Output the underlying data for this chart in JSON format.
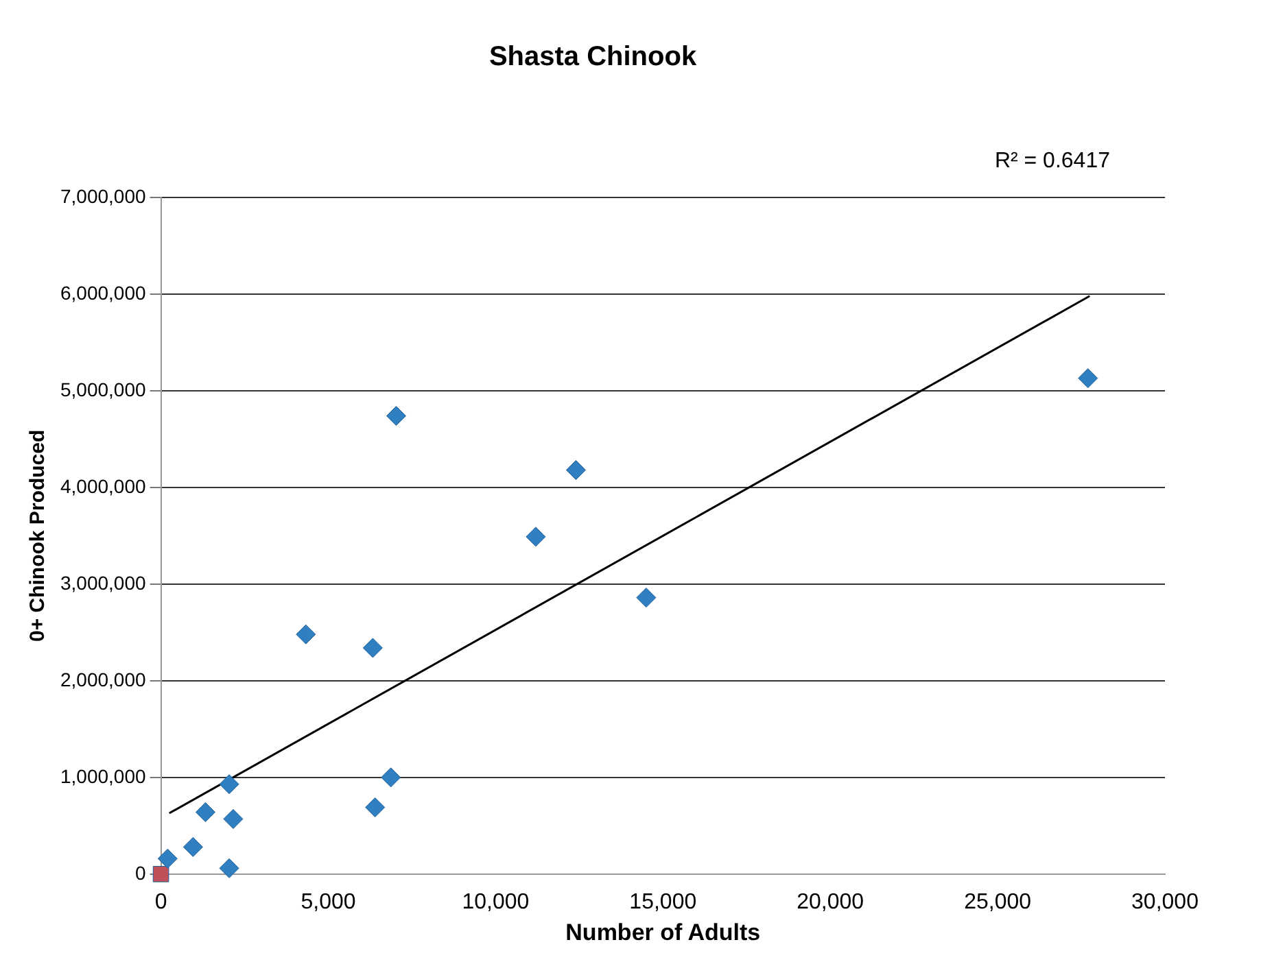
{
  "chart_data": {
    "type": "scatter",
    "title": "Shasta Chinook",
    "xlabel": "Number of Adults",
    "ylabel": "0+ Chinook Produced",
    "annotations": [
      "R² = 0.6417"
    ],
    "xlim": [
      0,
      30000
    ],
    "xticks": [
      {
        "value": 0,
        "label": "0"
      },
      {
        "value": 5000,
        "label": "5,000"
      },
      {
        "value": 10000,
        "label": "10,000"
      },
      {
        "value": 15000,
        "label": "15,000"
      },
      {
        "value": 20000,
        "label": "20,000"
      },
      {
        "value": 25000,
        "label": "25,000"
      },
      {
        "value": 30000,
        "label": "30,000"
      }
    ],
    "ylim": [
      0,
      7000000
    ],
    "yticks": [
      {
        "value": 0,
        "label": "0"
      },
      {
        "value": 1000000,
        "label": "1,000,000"
      },
      {
        "value": 2000000,
        "label": "2,000,000"
      },
      {
        "value": 3000000,
        "label": "3,000,000"
      },
      {
        "value": 4000000,
        "label": "4,000,000"
      },
      {
        "value": 5000000,
        "label": "5,000,000"
      },
      {
        "value": 6000000,
        "label": "6,000,000"
      },
      {
        "value": 7000000,
        "label": "7,000,000"
      }
    ],
    "grid": "y",
    "legend": false,
    "series": [
      {
        "marker": "diamond",
        "color": "#2f7fc1",
        "x": [
          200,
          960,
          1330,
          2040,
          2160,
          2040,
          4330,
          6330,
          6400,
          6870,
          7030,
          11200,
          12400,
          14500,
          27700
        ],
        "values": [
          160000,
          280000,
          640000,
          930000,
          570000,
          60000,
          2480000,
          2340000,
          690000,
          1000000,
          4740000,
          3490000,
          4180000,
          2860000,
          5130000
        ]
      },
      {
        "marker": "square",
        "color": "#c0505a",
        "x": [
          0
        ],
        "values": [
          0
        ]
      },
      {
        "type": "line",
        "marker": "none",
        "color": "#000000",
        "x": [
          250,
          27750
        ],
        "values": [
          630000,
          5980000
        ]
      }
    ]
  }
}
